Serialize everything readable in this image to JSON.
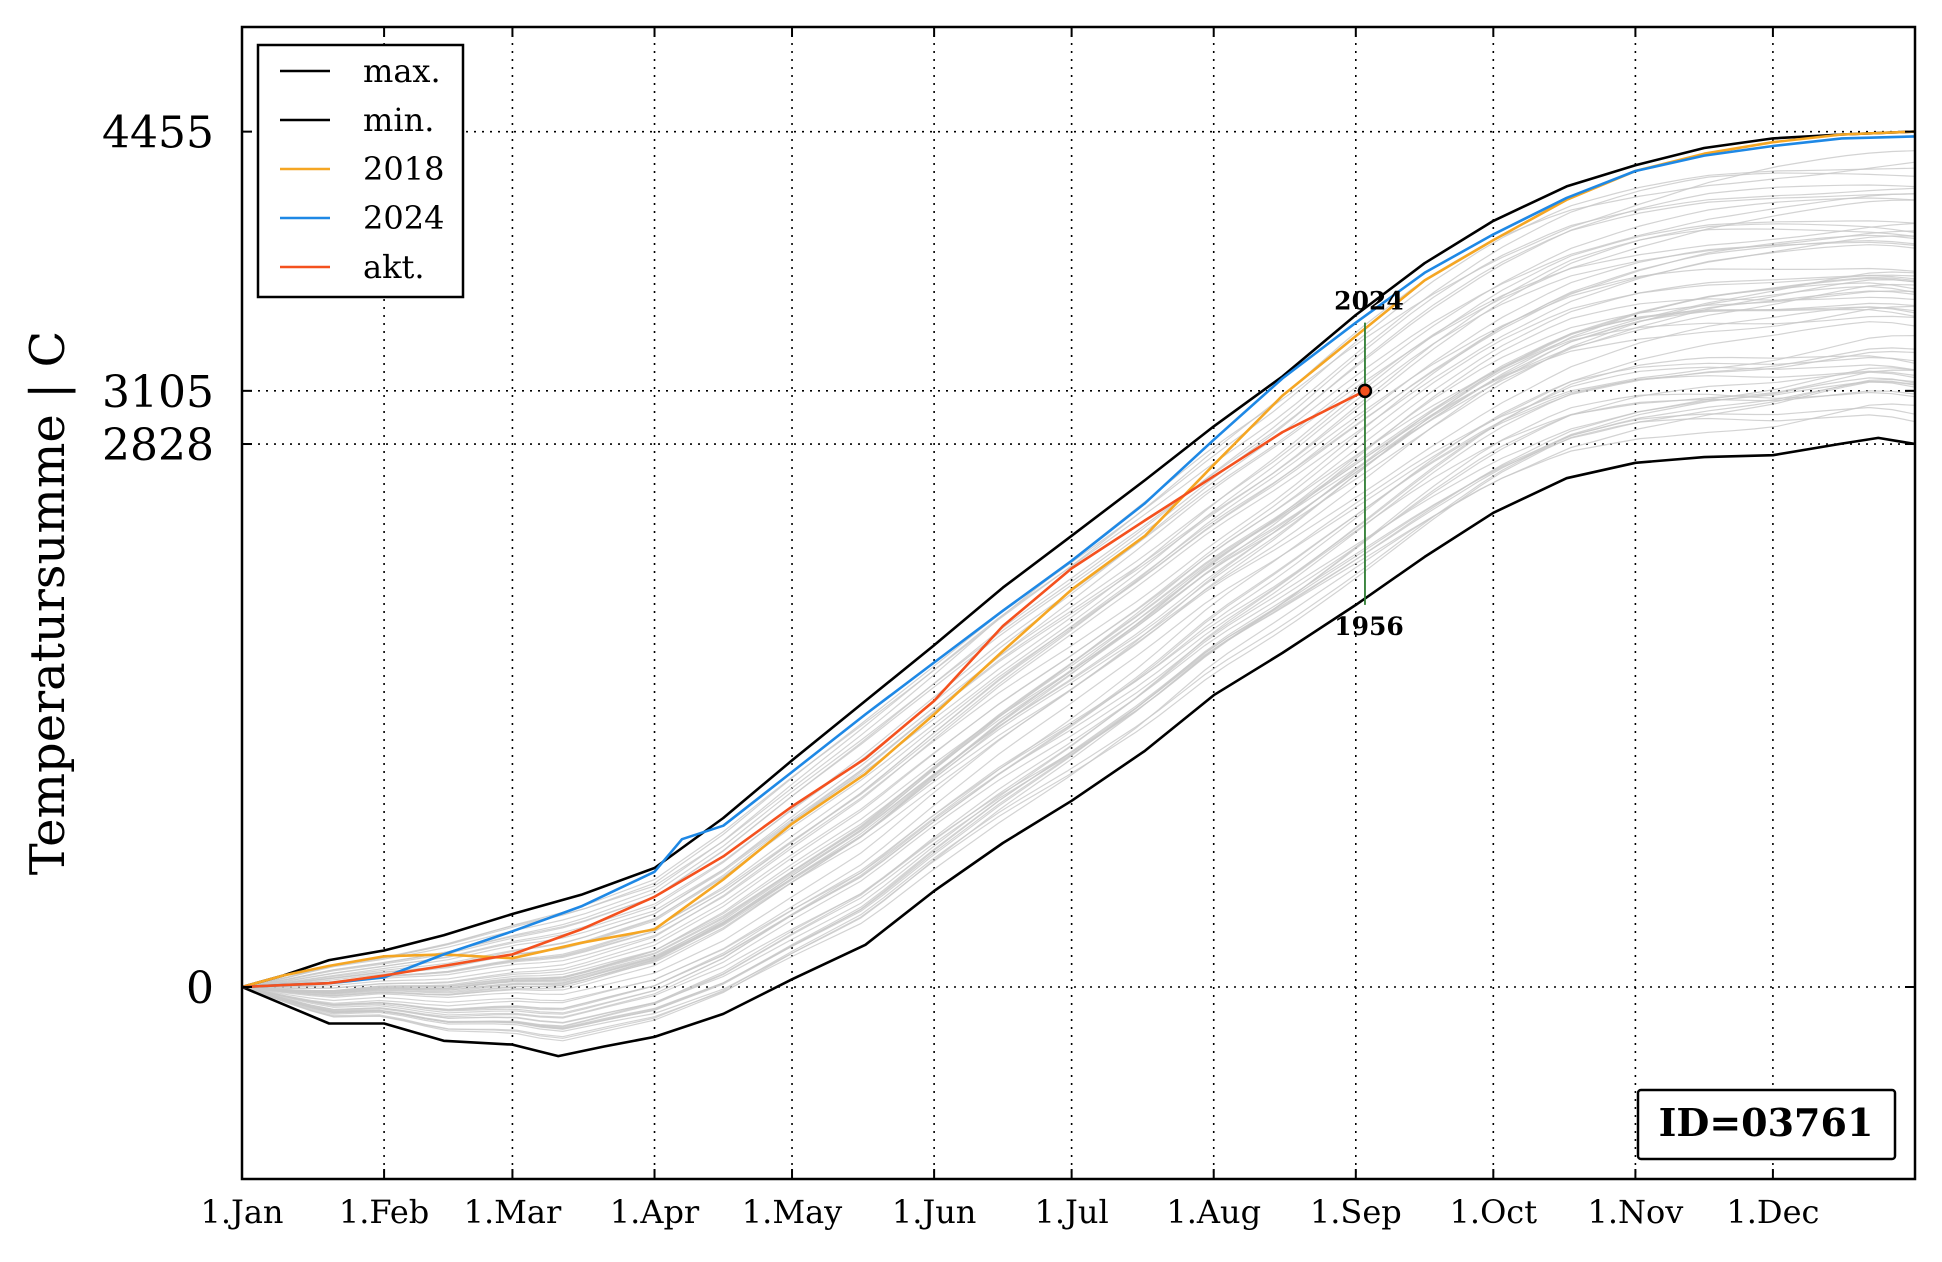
{
  "chart_data": {
    "type": "line",
    "ylabel": "Temperatursumme | C",
    "xlabel": "",
    "x_tick_labels": [
      "1.Jan",
      "1.Feb",
      "1.Mar",
      "1.Apr",
      "1.May",
      "1.Jun",
      "1.Jul",
      "1.Aug",
      "1.Sep",
      "1.Oct",
      "1.Nov",
      "1.Dec"
    ],
    "x_tick_days": [
      1,
      32,
      60,
      91,
      121,
      152,
      182,
      213,
      244,
      274,
      305,
      335
    ],
    "y_tick_labels": [
      "4455",
      "3105",
      "2828",
      "0"
    ],
    "y_ticks": [
      4455,
      3105,
      2828,
      0
    ],
    "xlim": [
      1,
      366
    ],
    "ylim": [
      -1000,
      5000
    ],
    "grid": true,
    "legend_position": "top-left",
    "series": [
      {
        "name": "max.",
        "color": "#000000",
        "x": [
          1,
          10,
          20,
          32,
          45,
          60,
          75,
          91,
          106,
          121,
          137,
          152,
          167,
          182,
          198,
          213,
          228,
          244,
          259,
          274,
          290,
          305,
          320,
          335,
          350,
          366
        ],
        "y": [
          0,
          60,
          140,
          190,
          270,
          380,
          480,
          620,
          880,
          1180,
          1490,
          1780,
          2080,
          2350,
          2640,
          2920,
          3180,
          3500,
          3770,
          3990,
          4170,
          4280,
          4370,
          4420,
          4440,
          4455
        ]
      },
      {
        "name": "min.",
        "color": "#000000",
        "x": [
          1,
          10,
          20,
          32,
          45,
          60,
          70,
          80,
          91,
          106,
          121,
          137,
          152,
          167,
          182,
          198,
          213,
          228,
          244,
          259,
          274,
          290,
          305,
          320,
          335,
          350,
          358,
          366
        ],
        "y": [
          0,
          -90,
          -190,
          -190,
          -280,
          -300,
          -360,
          -310,
          -260,
          -140,
          40,
          220,
          500,
          750,
          970,
          1230,
          1520,
          1740,
          1990,
          2240,
          2470,
          2650,
          2730,
          2760,
          2770,
          2830,
          2860,
          2828
        ]
      },
      {
        "name": "2018",
        "color": "#f5a623",
        "x": [
          1,
          10,
          20,
          32,
          45,
          60,
          75,
          91,
          106,
          121,
          137,
          152,
          167,
          182,
          198,
          213,
          228,
          244,
          259,
          274,
          290,
          305,
          320,
          335,
          350,
          366
        ],
        "y": [
          0,
          60,
          110,
          160,
          170,
          150,
          230,
          300,
          560,
          850,
          1110,
          1420,
          1750,
          2070,
          2350,
          2720,
          3080,
          3390,
          3680,
          3890,
          4100,
          4250,
          4340,
          4400,
          4440,
          4455
        ]
      },
      {
        "name": "2024",
        "color": "#1e88e5",
        "x": [
          1,
          10,
          20,
          32,
          45,
          60,
          75,
          91,
          97,
          106,
          121,
          137,
          152,
          167,
          182,
          198,
          213,
          228,
          244,
          259,
          274,
          290,
          305,
          320,
          335,
          350,
          366
        ],
        "y": [
          0,
          10,
          20,
          50,
          170,
          290,
          420,
          600,
          770,
          840,
          1120,
          1420,
          1690,
          1960,
          2220,
          2520,
          2850,
          3170,
          3460,
          3720,
          3920,
          4110,
          4250,
          4330,
          4380,
          4420,
          4430
        ]
      },
      {
        "name": "akt.",
        "color": "#f4511e",
        "x": [
          1,
          10,
          20,
          32,
          45,
          60,
          75,
          91,
          106,
          121,
          137,
          152,
          167,
          182,
          198,
          213,
          228,
          246
        ],
        "y": [
          0,
          10,
          20,
          60,
          110,
          170,
          300,
          470,
          680,
          940,
          1190,
          1490,
          1880,
          2180,
          2430,
          2660,
          2890,
          3105
        ]
      }
    ],
    "background_series_color": "#c8c8c8",
    "current_point": {
      "day": 246,
      "value": 3105,
      "color": "#f4511e"
    },
    "range_marker": {
      "day": 246,
      "top_value": 3460,
      "bottom_value": 1990,
      "top_label": "2024",
      "bottom_label": "1956",
      "color": "#2e7d32"
    },
    "annotation_box": "ID=03761"
  }
}
